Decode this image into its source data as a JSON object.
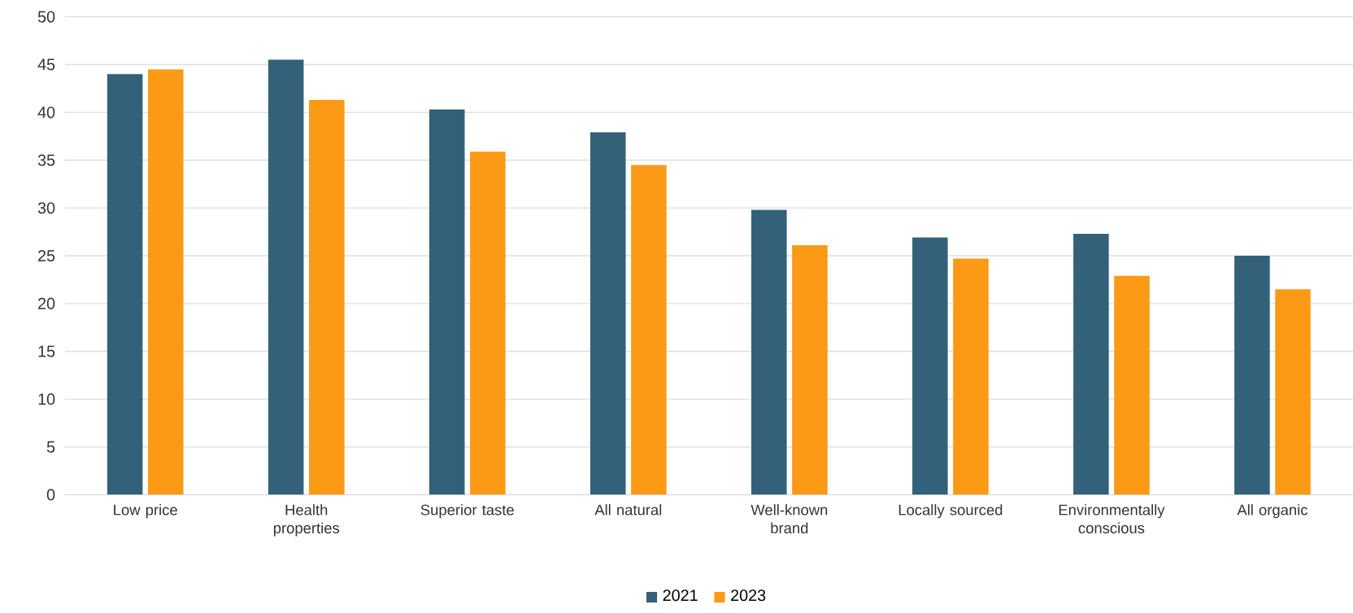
{
  "chart_data": {
    "type": "bar",
    "categories": [
      "Low price",
      "Health properties",
      "Superior taste",
      "All natural",
      "Well-known brand",
      "Locally sourced",
      "Environmentally conscious",
      "All organic"
    ],
    "series": [
      {
        "name": "2021",
        "color": "#33617a",
        "values": [
          44.0,
          45.5,
          40.3,
          37.9,
          29.8,
          26.9,
          27.3,
          25.0
        ]
      },
      {
        "name": "2023",
        "color": "#fc9a16",
        "values": [
          44.5,
          41.3,
          35.9,
          34.5,
          26.1,
          24.7,
          22.9,
          21.5
        ]
      }
    ],
    "ylim": [
      0,
      50
    ],
    "yticks": [
      0,
      5,
      10,
      15,
      20,
      25,
      30,
      35,
      40,
      45,
      50
    ],
    "grid": "y",
    "legend": "bottom"
  }
}
